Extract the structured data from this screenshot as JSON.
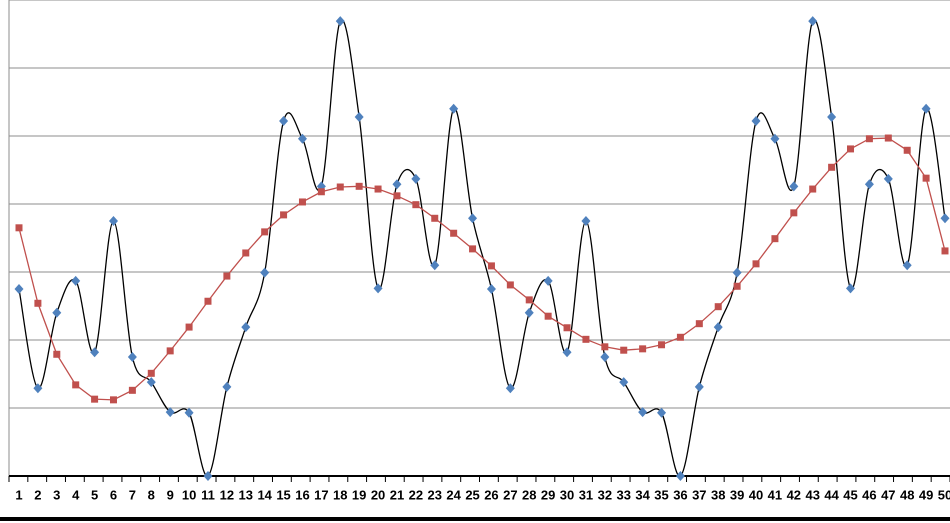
{
  "chart_data": {
    "type": "line",
    "categories": [
      "1",
      "2",
      "3",
      "4",
      "5",
      "6",
      "7",
      "8",
      "9",
      "10",
      "11",
      "12",
      "13",
      "14",
      "15",
      "16",
      "17",
      "18",
      "19",
      "20",
      "21",
      "22",
      "23",
      "24",
      "25",
      "26",
      "27",
      "28",
      "29",
      "30",
      "31",
      "32",
      "33",
      "34",
      "35",
      "36",
      "37",
      "38",
      "39",
      "40",
      "41",
      "42",
      "43",
      "44",
      "45",
      "46",
      "47",
      "48",
      "49",
      "50"
    ],
    "series": [
      {
        "color": "#4f81bd",
        "line_color": "#000000",
        "marker": "diamond",
        "smooth": true,
        "values": [
          2.75,
          1.29,
          2.4,
          2.87,
          1.82,
          3.75,
          1.75,
          1.38,
          0.94,
          0.93,
          0,
          1.31,
          2.19,
          2.99,
          5.22,
          4.96,
          4.26,
          6.69,
          5.28,
          2.76,
          4.29,
          4.37,
          3.1,
          5.4,
          3.79,
          2.75,
          1.29,
          2.4,
          2.87,
          1.82,
          3.75,
          1.75,
          1.38,
          0.94,
          0.93,
          0,
          1.31,
          2.19,
          2.99,
          5.22,
          4.96,
          4.26,
          6.69,
          5.28,
          2.76,
          4.29,
          4.37,
          3.1,
          5.4,
          3.79
        ]
      },
      {
        "color": "#c0504d",
        "line_color": "#c0504d",
        "marker": "square",
        "smooth": false,
        "values": [
          3.65,
          2.54,
          1.79,
          1.34,
          1.13,
          1.12,
          1.26,
          1.51,
          1.84,
          2.19,
          2.57,
          2.94,
          3.28,
          3.59,
          3.84,
          4.03,
          4.18,
          4.25,
          4.26,
          4.22,
          4.12,
          3.99,
          3.79,
          3.57,
          3.34,
          3.09,
          2.81,
          2.59,
          2.35,
          2.18,
          2.01,
          1.9,
          1.85,
          1.87,
          1.93,
          2.04,
          2.24,
          2.49,
          2.79,
          3.12,
          3.49,
          3.87,
          4.22,
          4.54,
          4.81,
          4.96,
          4.97,
          4.79,
          4.38,
          3.31
        ]
      }
    ],
    "ylim": [
      0,
      7
    ],
    "yticks": [
      0,
      1,
      2,
      3,
      4,
      5,
      6,
      7
    ],
    "grid": true
  }
}
